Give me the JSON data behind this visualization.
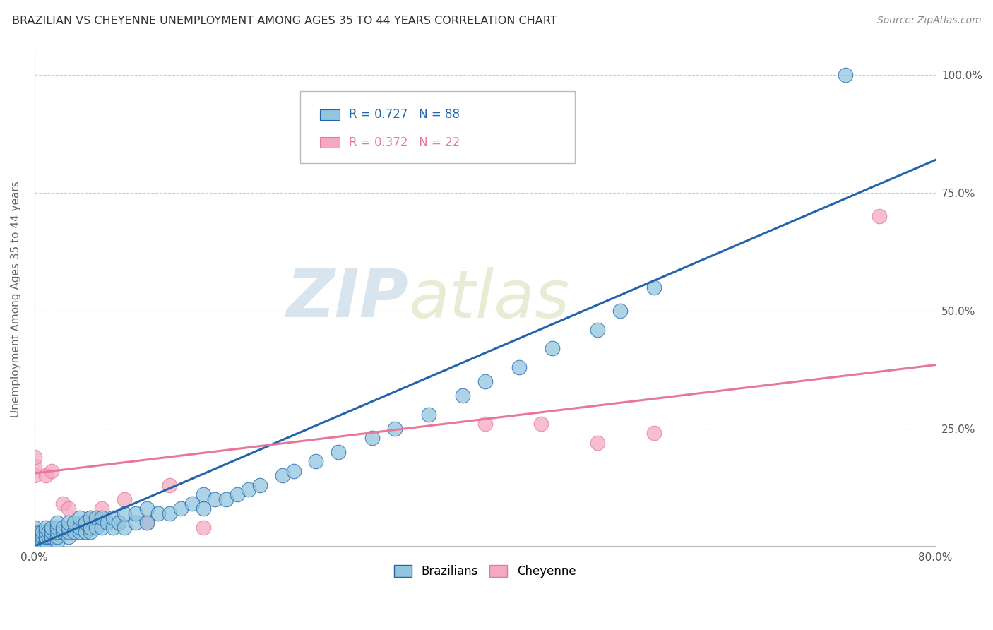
{
  "title": "BRAZILIAN VS CHEYENNE UNEMPLOYMENT AMONG AGES 35 TO 44 YEARS CORRELATION CHART",
  "source": "Source: ZipAtlas.com",
  "ylabel": "Unemployment Among Ages 35 to 44 years",
  "xlim": [
    0.0,
    0.8
  ],
  "ylim": [
    0.0,
    1.05
  ],
  "xticks": [
    0.0,
    0.1,
    0.2,
    0.3,
    0.4,
    0.5,
    0.6,
    0.7,
    0.8
  ],
  "xticklabels": [
    "0.0%",
    "",
    "",
    "",
    "",
    "",
    "",
    "",
    "80.0%"
  ],
  "ytick_positions": [
    0.0,
    0.25,
    0.5,
    0.75,
    1.0
  ],
  "yticklabels": [
    "",
    "25.0%",
    "50.0%",
    "75.0%",
    "100.0%"
  ],
  "watermark_zip": "ZIP",
  "watermark_atlas": "atlas",
  "legend_blue_r": "R = 0.727",
  "legend_blue_n": "N = 88",
  "legend_pink_r": "R = 0.372",
  "legend_pink_n": "N = 22",
  "blue_color": "#92c5de",
  "pink_color": "#f4a9c0",
  "blue_line_color": "#2166ac",
  "pink_line_color": "#e8779a",
  "background_color": "#ffffff",
  "grid_color": "#cccccc",
  "title_color": "#333333",
  "blue_scatter_x": [
    0.0,
    0.0,
    0.0,
    0.0,
    0.0,
    0.0,
    0.0,
    0.0,
    0.0,
    0.0,
    0.005,
    0.005,
    0.005,
    0.005,
    0.007,
    0.007,
    0.007,
    0.01,
    0.01,
    0.01,
    0.01,
    0.01,
    0.013,
    0.013,
    0.015,
    0.015,
    0.015,
    0.02,
    0.02,
    0.02,
    0.02,
    0.02,
    0.025,
    0.025,
    0.03,
    0.03,
    0.03,
    0.03,
    0.035,
    0.035,
    0.04,
    0.04,
    0.04,
    0.045,
    0.045,
    0.05,
    0.05,
    0.05,
    0.055,
    0.055,
    0.06,
    0.06,
    0.065,
    0.07,
    0.07,
    0.075,
    0.08,
    0.08,
    0.09,
    0.09,
    0.1,
    0.1,
    0.11,
    0.12,
    0.13,
    0.14,
    0.15,
    0.15,
    0.16,
    0.17,
    0.18,
    0.19,
    0.2,
    0.22,
    0.23,
    0.25,
    0.27,
    0.3,
    0.32,
    0.35,
    0.38,
    0.4,
    0.43,
    0.46,
    0.5,
    0.52,
    0.55,
    0.72
  ],
  "blue_scatter_y": [
    0.0,
    0.0,
    0.0,
    0.0,
    0.01,
    0.01,
    0.02,
    0.02,
    0.03,
    0.04,
    0.01,
    0.01,
    0.02,
    0.03,
    0.01,
    0.02,
    0.03,
    0.01,
    0.01,
    0.02,
    0.03,
    0.04,
    0.02,
    0.03,
    0.02,
    0.03,
    0.04,
    0.01,
    0.02,
    0.03,
    0.04,
    0.05,
    0.03,
    0.04,
    0.02,
    0.03,
    0.04,
    0.05,
    0.03,
    0.05,
    0.03,
    0.04,
    0.06,
    0.03,
    0.05,
    0.03,
    0.04,
    0.06,
    0.04,
    0.06,
    0.04,
    0.06,
    0.05,
    0.04,
    0.06,
    0.05,
    0.04,
    0.07,
    0.05,
    0.07,
    0.05,
    0.08,
    0.07,
    0.07,
    0.08,
    0.09,
    0.08,
    0.11,
    0.1,
    0.1,
    0.11,
    0.12,
    0.13,
    0.15,
    0.16,
    0.18,
    0.2,
    0.23,
    0.25,
    0.28,
    0.32,
    0.35,
    0.38,
    0.42,
    0.46,
    0.5,
    0.55,
    1.0
  ],
  "pink_scatter_x": [
    0.0,
    0.0,
    0.0,
    0.005,
    0.01,
    0.01,
    0.015,
    0.02,
    0.025,
    0.03,
    0.04,
    0.05,
    0.06,
    0.08,
    0.1,
    0.12,
    0.15,
    0.4,
    0.45,
    0.5,
    0.55,
    0.75
  ],
  "pink_scatter_y": [
    0.15,
    0.17,
    0.19,
    0.03,
    0.15,
    0.03,
    0.16,
    0.03,
    0.09,
    0.08,
    0.04,
    0.06,
    0.08,
    0.1,
    0.05,
    0.13,
    0.04,
    0.26,
    0.26,
    0.22,
    0.24,
    0.7
  ],
  "blue_line_x0": 0.0,
  "blue_line_x1": 0.8,
  "blue_line_y0": 0.0,
  "blue_line_y1": 0.82,
  "pink_line_x0": 0.0,
  "pink_line_x1": 0.8,
  "pink_line_y0": 0.155,
  "pink_line_y1": 0.385
}
